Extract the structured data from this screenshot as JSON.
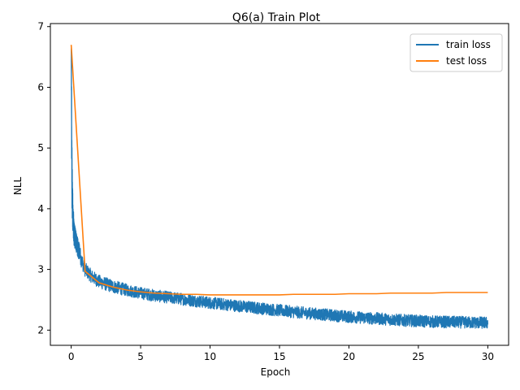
{
  "chart_data": {
    "type": "line",
    "title": "Q6(a) Train Plot",
    "xlabel": "Epoch",
    "ylabel": "NLL",
    "xlim": [
      -1.5,
      31.5
    ],
    "ylim": [
      1.75,
      7.05
    ],
    "xticks": [
      0,
      5,
      10,
      15,
      20,
      25,
      30
    ],
    "yticks": [
      2,
      3,
      4,
      5,
      6,
      7
    ],
    "grid": false,
    "legend_position": "top-right",
    "series": [
      {
        "name": "train loss",
        "color": "#1f77b4",
        "noisy": true,
        "x": [
          0,
          0.02,
          0.05,
          0.1,
          0.2,
          0.35,
          0.5,
          0.75,
          1,
          1.5,
          2,
          3,
          4,
          5,
          6,
          7,
          8,
          9,
          10,
          12,
          14,
          16,
          18,
          20,
          22,
          24,
          26,
          28,
          30
        ],
        "y": [
          6.7,
          5.8,
          4.6,
          4.0,
          3.6,
          3.45,
          3.35,
          3.15,
          3.0,
          2.88,
          2.8,
          2.72,
          2.66,
          2.61,
          2.57,
          2.54,
          2.51,
          2.48,
          2.45,
          2.4,
          2.35,
          2.3,
          2.26,
          2.22,
          2.19,
          2.16,
          2.14,
          2.13,
          2.12
        ],
        "spread": [
          0.12,
          0.7,
          0.6,
          0.35,
          0.2,
          0.17,
          0.15,
          0.13,
          0.12,
          0.11,
          0.11,
          0.11,
          0.1,
          0.1,
          0.1,
          0.1,
          0.1,
          0.1,
          0.1,
          0.1,
          0.1,
          0.1,
          0.1,
          0.1,
          0.1,
          0.1,
          0.1,
          0.1,
          0.1
        ]
      },
      {
        "name": "test loss",
        "color": "#ff7f0e",
        "x": [
          0,
          1,
          2,
          3,
          4,
          5,
          6,
          7,
          8,
          9,
          10,
          11,
          12,
          13,
          14,
          15,
          16,
          17,
          18,
          19,
          20,
          21,
          22,
          23,
          24,
          25,
          26,
          27,
          28,
          29,
          30
        ],
        "y": [
          6.7,
          2.97,
          2.78,
          2.71,
          2.66,
          2.63,
          2.61,
          2.6,
          2.59,
          2.59,
          2.58,
          2.58,
          2.58,
          2.58,
          2.58,
          2.58,
          2.59,
          2.59,
          2.59,
          2.59,
          2.6,
          2.6,
          2.6,
          2.61,
          2.61,
          2.61,
          2.61,
          2.62,
          2.62,
          2.62,
          2.62
        ]
      }
    ]
  }
}
